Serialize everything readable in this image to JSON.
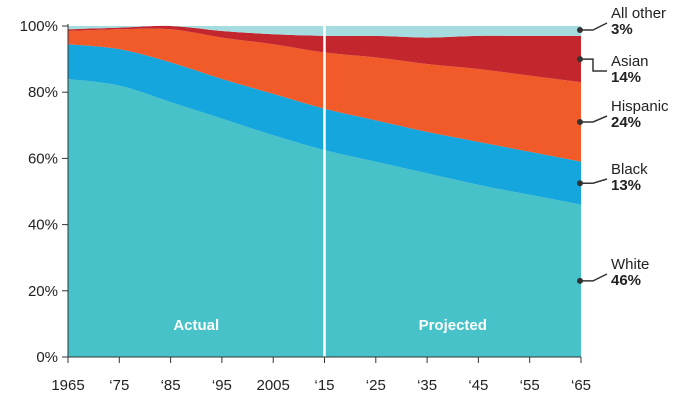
{
  "chart_data": {
    "type": "area",
    "stacked": true,
    "normalized_percent": true,
    "x": [
      1965,
      1975,
      1985,
      1995,
      2005,
      2015,
      2025,
      2035,
      2045,
      2055,
      2065
    ],
    "x_tick_labels": [
      "1965",
      "‘75",
      "‘85",
      "‘95",
      "2005",
      "‘15",
      "‘25",
      "‘35",
      "‘45",
      "‘55",
      "‘65"
    ],
    "y_tick_labels": [
      "0%",
      "20%",
      "40%",
      "60%",
      "80%",
      "100%"
    ],
    "ylim": [
      0,
      100
    ],
    "region_labels": {
      "actual": "Actual",
      "projected": "Projected"
    },
    "divider_x": 2015,
    "series": [
      {
        "name": "White",
        "end_label": "46%",
        "color": "#47c2c8",
        "values": [
          84,
          82,
          77,
          72,
          67,
          62.5,
          59,
          55.5,
          52,
          49,
          46
        ]
      },
      {
        "name": "Black",
        "end_label": "13%",
        "color": "#14a6dc",
        "values": [
          10.5,
          11,
          12,
          12,
          12.5,
          12.5,
          12.5,
          12.5,
          13,
          13,
          13
        ]
      },
      {
        "name": "Hispanic",
        "end_label": "24%",
        "color": "#f15a29",
        "values": [
          4,
          6,
          10,
          12.5,
          15,
          17,
          19,
          20.5,
          22,
          23,
          24
        ]
      },
      {
        "name": "Asian",
        "end_label": "14%",
        "color": "#c4262e",
        "values": [
          0.5,
          0.5,
          1,
          2,
          3,
          5,
          6.5,
          8,
          10,
          12,
          14
        ]
      },
      {
        "name": "All other",
        "end_label": "3%",
        "color": "#a5dcdf",
        "values": [
          1,
          0.5,
          0,
          1.5,
          2.5,
          3,
          3,
          3.5,
          3,
          3,
          3
        ]
      }
    ]
  }
}
